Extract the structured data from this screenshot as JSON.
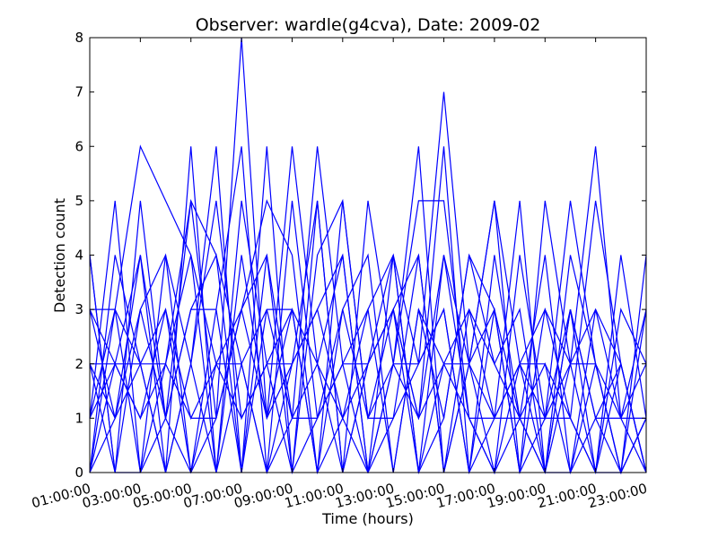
{
  "chart_data": {
    "type": "line",
    "title": "Observer: wardle(g4cva), Date: 2009-02",
    "xlabel": "Time (hours)",
    "ylabel": "Detection count",
    "xlim": [
      0,
      22
    ],
    "ylim": [
      0,
      8
    ],
    "x_ticks": [
      {
        "value": 0,
        "label": "01:00:00"
      },
      {
        "value": 2,
        "label": "03:00:00"
      },
      {
        "value": 4,
        "label": "05:00:00"
      },
      {
        "value": 6,
        "label": "07:00:00"
      },
      {
        "value": 8,
        "label": "09:00:00"
      },
      {
        "value": 10,
        "label": "11:00:00"
      },
      {
        "value": 12,
        "label": "13:00:00"
      },
      {
        "value": 14,
        "label": "15:00:00"
      },
      {
        "value": 16,
        "label": "17:00:00"
      },
      {
        "value": 18,
        "label": "19:00:00"
      },
      {
        "value": 20,
        "label": "21:00:00"
      },
      {
        "value": 22,
        "label": "23:00:00"
      }
    ],
    "y_ticks": [
      0,
      1,
      2,
      3,
      4,
      5,
      6,
      7,
      8
    ],
    "grid": false,
    "line_color": "#0000ff",
    "x": [
      0,
      1,
      2,
      3,
      4,
      5,
      6,
      7,
      8,
      9,
      10,
      11,
      12,
      13,
      14,
      15,
      16,
      17,
      18,
      19,
      20,
      21,
      22
    ],
    "series": [
      {
        "values": [
          4,
          0,
          3,
          1,
          5,
          1,
          8,
          1,
          6,
          2,
          4,
          0,
          4,
          2,
          7,
          2,
          5,
          0,
          5,
          2,
          6,
          1,
          3
        ]
      },
      {
        "values": [
          1,
          5,
          0,
          4,
          2,
          6,
          0,
          6,
          0,
          5,
          0,
          5,
          2,
          6,
          0,
          3,
          1,
          5,
          0,
          3,
          0,
          2,
          0
        ]
      },
      {
        "values": [
          3,
          3,
          6,
          5,
          4,
          2,
          3,
          1,
          3,
          0,
          5,
          1,
          3,
          1,
          6,
          0,
          3,
          1,
          2,
          0,
          3,
          1,
          1
        ]
      },
      {
        "values": [
          0,
          4,
          2,
          0,
          6,
          0,
          5,
          2,
          2,
          3,
          1,
          3,
          4,
          0,
          4,
          2,
          5,
          2,
          0,
          3,
          1,
          0,
          4
        ]
      },
      {
        "values": [
          2,
          0,
          5,
          1,
          3,
          4,
          0,
          4,
          1,
          6,
          2,
          0,
          2,
          5,
          5,
          1,
          0,
          4,
          1,
          1,
          5,
          2,
          0
        ]
      },
      {
        "values": [
          1,
          2,
          2,
          3,
          0,
          3,
          6,
          0,
          5,
          1,
          3,
          4,
          0,
          3,
          1,
          4,
          3,
          0,
          3,
          2,
          0,
          3,
          2
        ]
      },
      {
        "values": [
          0,
          3,
          0,
          2,
          4,
          0,
          2,
          3,
          3,
          2,
          0,
          2,
          3,
          4,
          0,
          2,
          1,
          2,
          1,
          5,
          2,
          0,
          1
        ]
      },
      {
        "values": [
          3,
          1,
          4,
          0,
          2,
          5,
          1,
          2,
          0,
          4,
          5,
          1,
          1,
          2,
          3,
          0,
          4,
          1,
          4,
          0,
          1,
          1,
          0
        ]
      },
      {
        "values": [
          2,
          2,
          1,
          2,
          1,
          1,
          3,
          5,
          4,
          0,
          1,
          2,
          4,
          0,
          2,
          3,
          2,
          3,
          0,
          4,
          2,
          0,
          3
        ]
      },
      {
        "values": [
          0,
          1,
          3,
          4,
          0,
          2,
          2,
          0,
          2,
          3,
          4,
          0,
          2,
          1,
          4,
          1,
          0,
          2,
          3,
          1,
          0,
          4,
          1
        ]
      },
      {
        "values": [
          4,
          0,
          0,
          1,
          3,
          3,
          0,
          3,
          1,
          1,
          2,
          3,
          0,
          3,
          2,
          2,
          3,
          0,
          1,
          2,
          3,
          2,
          0
        ]
      },
      {
        "values": [
          1,
          3,
          2,
          0,
          2,
          0,
          4,
          1,
          2,
          5,
          0,
          2,
          3,
          0,
          1,
          4,
          2,
          1,
          0,
          0,
          2,
          1,
          2
        ]
      },
      {
        "values": [
          3,
          2,
          1,
          3,
          1,
          2,
          1,
          2,
          3,
          0,
          3,
          1,
          2,
          2,
          3,
          0,
          1,
          2,
          2,
          1,
          0,
          0,
          1
        ]
      },
      {
        "values": [
          2,
          1,
          2,
          2,
          5,
          4,
          2,
          0,
          1,
          2,
          1,
          0,
          1,
          4,
          0,
          2,
          0,
          1,
          1,
          3,
          1,
          2,
          0
        ]
      },
      {
        "values": [
          0,
          2,
          4,
          1,
          0,
          1,
          3,
          4,
          0,
          1,
          2,
          2,
          3,
          1,
          2,
          1,
          1,
          1,
          0,
          2,
          2,
          0,
          1
        ]
      }
    ]
  }
}
